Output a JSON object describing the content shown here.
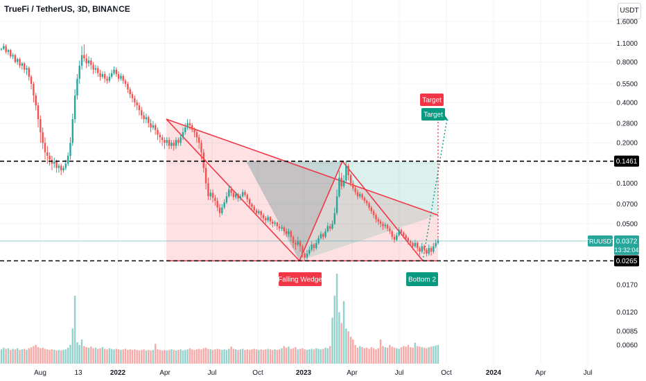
{
  "header": {
    "symbol_title": "TrueFi / TetherUS, 3D, BINANCE",
    "currency": "USDT"
  },
  "chart_data": {
    "type": "candlestick",
    "symbol": "TRUUSDT",
    "price_axis": {
      "scale": "log",
      "ticks": [
        "1.6000",
        "1.1000",
        "0.8000",
        "0.5500",
        "0.4000",
        "0.2800",
        "0.2000",
        "0.1400",
        "0.1000",
        "0.0700",
        "0.0500"
      ]
    },
    "volume_axis": {
      "ticks": [
        "0.0170",
        "0.0120",
        "0.0085",
        "0.0060"
      ]
    },
    "time_axis": {
      "ticks": [
        "Aug",
        "13",
        "2022",
        "Apr",
        "Jul",
        "Oct",
        "2023",
        "Apr",
        "Jul",
        "Oct",
        "2024",
        "Apr",
        "Jul"
      ]
    },
    "levels": [
      {
        "label": "0.1461",
        "value": 0.1461,
        "style": "dashed",
        "color": "#000000"
      },
      {
        "label": "0.0265",
        "value": 0.0265,
        "style": "dashed",
        "color": "#000000"
      }
    ],
    "last_price": {
      "symbol": "TRUUSDT",
      "value": "0.0372",
      "countdown": "13:32:04",
      "color": "#26a69a"
    },
    "annotations": [
      {
        "text": "Target",
        "color": "#f23645"
      },
      {
        "text": "Target",
        "color": "#089981"
      },
      {
        "text": "Falling Wedge",
        "color": "#f23645"
      },
      {
        "text": "Bottom 2",
        "color": "#089981"
      }
    ],
    "candles": [
      [
        1.0,
        1.0,
        1.02,
        0.97
      ],
      [
        1.0,
        1.05,
        1.1,
        0.98
      ],
      [
        1.05,
        0.95,
        1.08,
        0.92
      ],
      [
        0.95,
        0.98,
        1.0,
        0.9
      ],
      [
        0.98,
        0.88,
        1.0,
        0.85
      ],
      [
        0.88,
        0.9,
        0.93,
        0.84
      ],
      [
        0.9,
        0.8,
        0.92,
        0.78
      ],
      [
        0.8,
        0.84,
        0.86,
        0.76
      ],
      [
        0.84,
        0.75,
        0.86,
        0.72
      ],
      [
        0.75,
        0.78,
        0.8,
        0.7
      ],
      [
        0.78,
        0.7,
        0.8,
        0.66
      ],
      [
        0.7,
        0.72,
        0.75,
        0.64
      ],
      [
        0.72,
        0.62,
        0.74,
        0.58
      ],
      [
        0.62,
        0.55,
        0.64,
        0.5
      ],
      [
        0.55,
        0.45,
        0.57,
        0.4
      ],
      [
        0.45,
        0.38,
        0.47,
        0.35
      ],
      [
        0.38,
        0.3,
        0.4,
        0.26
      ],
      [
        0.3,
        0.24,
        0.32,
        0.2
      ],
      [
        0.24,
        0.2,
        0.26,
        0.18
      ],
      [
        0.2,
        0.17,
        0.22,
        0.15
      ],
      [
        0.17,
        0.16,
        0.19,
        0.14
      ],
      [
        0.16,
        0.15,
        0.17,
        0.135
      ],
      [
        0.15,
        0.14,
        0.16,
        0.125
      ],
      [
        0.14,
        0.145,
        0.155,
        0.13
      ],
      [
        0.145,
        0.13,
        0.15,
        0.12
      ],
      [
        0.13,
        0.135,
        0.14,
        0.12
      ],
      [
        0.135,
        0.125,
        0.14,
        0.115
      ],
      [
        0.125,
        0.13,
        0.135,
        0.12
      ],
      [
        0.13,
        0.14,
        0.15,
        0.125
      ],
      [
        0.14,
        0.16,
        0.17,
        0.135
      ],
      [
        0.16,
        0.2,
        0.22,
        0.15
      ],
      [
        0.2,
        0.3,
        0.33,
        0.19
      ],
      [
        0.3,
        0.45,
        0.5,
        0.28
      ],
      [
        0.45,
        0.6,
        0.65,
        0.42
      ],
      [
        0.6,
        0.75,
        0.82,
        0.55
      ],
      [
        0.75,
        0.9,
        1.05,
        0.7
      ],
      [
        0.9,
        0.85,
        1.08,
        0.8
      ],
      [
        0.85,
        0.78,
        0.92,
        0.72
      ],
      [
        0.78,
        0.82,
        0.88,
        0.74
      ],
      [
        0.82,
        0.76,
        0.86,
        0.7
      ],
      [
        0.76,
        0.7,
        0.8,
        0.65
      ],
      [
        0.7,
        0.72,
        0.76,
        0.66
      ],
      [
        0.72,
        0.66,
        0.75,
        0.62
      ],
      [
        0.66,
        0.62,
        0.7,
        0.58
      ],
      [
        0.62,
        0.65,
        0.68,
        0.6
      ],
      [
        0.65,
        0.6,
        0.68,
        0.56
      ],
      [
        0.6,
        0.58,
        0.63,
        0.55
      ],
      [
        0.58,
        0.62,
        0.66,
        0.56
      ],
      [
        0.62,
        0.66,
        0.7,
        0.6
      ],
      [
        0.66,
        0.7,
        0.74,
        0.64
      ],
      [
        0.7,
        0.65,
        0.73,
        0.62
      ],
      [
        0.65,
        0.6,
        0.68,
        0.57
      ],
      [
        0.6,
        0.63,
        0.66,
        0.58
      ],
      [
        0.63,
        0.58,
        0.65,
        0.55
      ],
      [
        0.58,
        0.55,
        0.6,
        0.52
      ],
      [
        0.55,
        0.5,
        0.57,
        0.47
      ],
      [
        0.5,
        0.46,
        0.52,
        0.43
      ],
      [
        0.46,
        0.43,
        0.48,
        0.4
      ],
      [
        0.43,
        0.4,
        0.45,
        0.37
      ],
      [
        0.4,
        0.38,
        0.42,
        0.35
      ],
      [
        0.38,
        0.35,
        0.4,
        0.32
      ],
      [
        0.35,
        0.32,
        0.37,
        0.3
      ],
      [
        0.32,
        0.3,
        0.34,
        0.28
      ],
      [
        0.3,
        0.31,
        0.33,
        0.28
      ],
      [
        0.31,
        0.28,
        0.32,
        0.26
      ],
      [
        0.28,
        0.26,
        0.3,
        0.24
      ],
      [
        0.26,
        0.27,
        0.29,
        0.25
      ],
      [
        0.27,
        0.25,
        0.28,
        0.23
      ],
      [
        0.25,
        0.23,
        0.26,
        0.21
      ],
      [
        0.23,
        0.22,
        0.24,
        0.2
      ],
      [
        0.22,
        0.21,
        0.23,
        0.19
      ],
      [
        0.21,
        0.2,
        0.22,
        0.18
      ],
      [
        0.2,
        0.21,
        0.22,
        0.19
      ],
      [
        0.21,
        0.19,
        0.22,
        0.18
      ],
      [
        0.19,
        0.2,
        0.21,
        0.18
      ],
      [
        0.2,
        0.19,
        0.21,
        0.175
      ],
      [
        0.19,
        0.21,
        0.22,
        0.18
      ],
      [
        0.21,
        0.2,
        0.22,
        0.19
      ],
      [
        0.2,
        0.22,
        0.23,
        0.19
      ],
      [
        0.22,
        0.24,
        0.26,
        0.21
      ],
      [
        0.24,
        0.26,
        0.28,
        0.23
      ],
      [
        0.26,
        0.28,
        0.3,
        0.25
      ],
      [
        0.28,
        0.27,
        0.3,
        0.25
      ],
      [
        0.27,
        0.25,
        0.28,
        0.24
      ],
      [
        0.25,
        0.24,
        0.26,
        0.22
      ],
      [
        0.24,
        0.22,
        0.25,
        0.2
      ],
      [
        0.22,
        0.2,
        0.23,
        0.18
      ],
      [
        0.2,
        0.17,
        0.21,
        0.15
      ],
      [
        0.17,
        0.13,
        0.18,
        0.12
      ],
      [
        0.13,
        0.1,
        0.14,
        0.09
      ],
      [
        0.1,
        0.08,
        0.11,
        0.075
      ],
      [
        0.08,
        0.085,
        0.09,
        0.075
      ],
      [
        0.085,
        0.078,
        0.09,
        0.072
      ],
      [
        0.078,
        0.074,
        0.082,
        0.068
      ],
      [
        0.074,
        0.066,
        0.078,
        0.062
      ],
      [
        0.066,
        0.06,
        0.07,
        0.056
      ],
      [
        0.06,
        0.066,
        0.07,
        0.058
      ],
      [
        0.066,
        0.072,
        0.076,
        0.064
      ],
      [
        0.072,
        0.08,
        0.086,
        0.07
      ],
      [
        0.08,
        0.09,
        0.096,
        0.078
      ],
      [
        0.09,
        0.085,
        0.095,
        0.08
      ],
      [
        0.085,
        0.079,
        0.088,
        0.075
      ],
      [
        0.079,
        0.083,
        0.086,
        0.076
      ],
      [
        0.083,
        0.077,
        0.085,
        0.073
      ],
      [
        0.077,
        0.08,
        0.083,
        0.074
      ],
      [
        0.08,
        0.086,
        0.09,
        0.078
      ],
      [
        0.086,
        0.082,
        0.089,
        0.079
      ],
      [
        0.082,
        0.076,
        0.084,
        0.072
      ],
      [
        0.076,
        0.07,
        0.078,
        0.066
      ],
      [
        0.07,
        0.067,
        0.072,
        0.063
      ],
      [
        0.067,
        0.063,
        0.069,
        0.06
      ],
      [
        0.063,
        0.06,
        0.065,
        0.057
      ],
      [
        0.06,
        0.062,
        0.064,
        0.058
      ],
      [
        0.062,
        0.058,
        0.063,
        0.055
      ],
      [
        0.058,
        0.055,
        0.06,
        0.052
      ],
      [
        0.055,
        0.053,
        0.057,
        0.05
      ],
      [
        0.053,
        0.056,
        0.058,
        0.051
      ],
      [
        0.056,
        0.052,
        0.057,
        0.049
      ],
      [
        0.052,
        0.05,
        0.054,
        0.047
      ],
      [
        0.05,
        0.051,
        0.053,
        0.048
      ],
      [
        0.051,
        0.048,
        0.052,
        0.045
      ],
      [
        0.048,
        0.046,
        0.05,
        0.044
      ],
      [
        0.046,
        0.047,
        0.049,
        0.044
      ],
      [
        0.047,
        0.044,
        0.048,
        0.041
      ],
      [
        0.044,
        0.042,
        0.046,
        0.04
      ],
      [
        0.042,
        0.044,
        0.046,
        0.04
      ],
      [
        0.044,
        0.04,
        0.045,
        0.037
      ],
      [
        0.04,
        0.036,
        0.041,
        0.033
      ],
      [
        0.036,
        0.035,
        0.038,
        0.032
      ],
      [
        0.035,
        0.037,
        0.04,
        0.034
      ],
      [
        0.037,
        0.034,
        0.038,
        0.031
      ],
      [
        0.034,
        0.03,
        0.035,
        0.028
      ],
      [
        0.03,
        0.028,
        0.031,
        0.0265
      ],
      [
        0.028,
        0.03,
        0.032,
        0.027
      ],
      [
        0.03,
        0.032,
        0.034,
        0.029
      ],
      [
        0.032,
        0.035,
        0.037,
        0.031
      ],
      [
        0.035,
        0.033,
        0.036,
        0.031
      ],
      [
        0.033,
        0.036,
        0.038,
        0.032
      ],
      [
        0.036,
        0.039,
        0.041,
        0.035
      ],
      [
        0.039,
        0.042,
        0.044,
        0.038
      ],
      [
        0.042,
        0.04,
        0.043,
        0.038
      ],
      [
        0.04,
        0.044,
        0.046,
        0.039
      ],
      [
        0.044,
        0.048,
        0.051,
        0.043
      ],
      [
        0.048,
        0.046,
        0.05,
        0.044
      ],
      [
        0.046,
        0.05,
        0.053,
        0.045
      ],
      [
        0.05,
        0.06,
        0.066,
        0.049
      ],
      [
        0.06,
        0.08,
        0.09,
        0.058
      ],
      [
        0.08,
        0.11,
        0.125,
        0.078
      ],
      [
        0.11,
        0.095,
        0.12,
        0.09
      ],
      [
        0.095,
        0.105,
        0.115,
        0.092
      ],
      [
        0.105,
        0.135,
        0.146,
        0.1
      ],
      [
        0.135,
        0.115,
        0.14,
        0.105
      ],
      [
        0.115,
        0.1,
        0.118,
        0.095
      ],
      [
        0.1,
        0.092,
        0.105,
        0.088
      ],
      [
        0.092,
        0.086,
        0.095,
        0.082
      ],
      [
        0.086,
        0.08,
        0.09,
        0.076
      ],
      [
        0.08,
        0.083,
        0.086,
        0.077
      ],
      [
        0.083,
        0.078,
        0.085,
        0.075
      ],
      [
        0.078,
        0.074,
        0.08,
        0.071
      ],
      [
        0.074,
        0.071,
        0.076,
        0.068
      ],
      [
        0.071,
        0.066,
        0.073,
        0.063
      ],
      [
        0.066,
        0.062,
        0.068,
        0.059
      ],
      [
        0.062,
        0.058,
        0.064,
        0.055
      ],
      [
        0.058,
        0.054,
        0.06,
        0.051
      ],
      [
        0.054,
        0.052,
        0.056,
        0.049
      ],
      [
        0.052,
        0.05,
        0.054,
        0.047
      ],
      [
        0.05,
        0.048,
        0.052,
        0.045
      ],
      [
        0.048,
        0.049,
        0.051,
        0.046
      ],
      [
        0.049,
        0.046,
        0.05,
        0.044
      ],
      [
        0.046,
        0.044,
        0.048,
        0.042
      ],
      [
        0.044,
        0.04,
        0.045,
        0.038
      ],
      [
        0.04,
        0.038,
        0.042,
        0.036
      ],
      [
        0.038,
        0.041,
        0.043,
        0.037
      ],
      [
        0.041,
        0.045,
        0.047,
        0.04
      ],
      [
        0.045,
        0.043,
        0.046,
        0.041
      ],
      [
        0.043,
        0.041,
        0.044,
        0.039
      ],
      [
        0.041,
        0.039,
        0.042,
        0.037
      ],
      [
        0.039,
        0.037,
        0.04,
        0.035
      ],
      [
        0.037,
        0.036,
        0.038,
        0.034
      ],
      [
        0.036,
        0.034,
        0.037,
        0.032
      ],
      [
        0.034,
        0.036,
        0.038,
        0.033
      ],
      [
        0.036,
        0.033,
        0.037,
        0.031
      ],
      [
        0.033,
        0.031,
        0.034,
        0.029
      ],
      [
        0.031,
        0.034,
        0.036,
        0.03
      ],
      [
        0.034,
        0.032,
        0.035,
        0.03
      ],
      [
        0.032,
        0.03,
        0.033,
        0.0285
      ],
      [
        0.03,
        0.033,
        0.035,
        0.029
      ],
      [
        0.033,
        0.031,
        0.034,
        0.029
      ],
      [
        0.031,
        0.034,
        0.036,
        0.03
      ],
      [
        0.034,
        0.036,
        0.038,
        0.033
      ],
      [
        0.036,
        0.0372,
        0.039,
        0.035
      ]
    ],
    "volume": [
      0.0052,
      0.0055,
      0.0053,
      0.0054,
      0.0051,
      0.0053,
      0.0052,
      0.0054,
      0.0051,
      0.0052,
      0.0053,
      0.0051,
      0.0054,
      0.0056,
      0.0058,
      0.006,
      0.0056,
      0.0054,
      0.0055,
      0.0053,
      0.0052,
      0.0051,
      0.0052,
      0.0051,
      0.005,
      0.0051,
      0.005,
      0.0051,
      0.0052,
      0.0055,
      0.006,
      0.009,
      0.015,
      0.0065,
      0.006,
      0.007,
      0.0058,
      0.0056,
      0.0055,
      0.0057,
      0.0054,
      0.0055,
      0.0053,
      0.0054,
      0.0056,
      0.0053,
      0.0052,
      0.0054,
      0.0053,
      0.0052,
      0.0053,
      0.0052,
      0.0051,
      0.0052,
      0.0053,
      0.0051,
      0.0052,
      0.0051,
      0.0052,
      0.0051,
      0.005,
      0.0051,
      0.0052,
      0.005,
      0.0051,
      0.005,
      0.0051,
      0.0062,
      0.0052,
      0.0051,
      0.005,
      0.0051,
      0.005,
      0.0051,
      0.0052,
      0.0051,
      0.005,
      0.0051,
      0.0052,
      0.005,
      0.0051,
      0.0052,
      0.0054,
      0.0052,
      0.0051,
      0.0052,
      0.0053,
      0.0052,
      0.0054,
      0.0055,
      0.0053,
      0.0052,
      0.0051,
      0.0052,
      0.0053,
      0.0052,
      0.0051,
      0.0052,
      0.0051,
      0.0053,
      0.0057,
      0.0053,
      0.0052,
      0.0051,
      0.0052,
      0.0053,
      0.0051,
      0.0052,
      0.0051,
      0.0052,
      0.0053,
      0.0052,
      0.0051,
      0.0052,
      0.0051,
      0.0052,
      0.0053,
      0.0052,
      0.0051,
      0.0052,
      0.0051,
      0.0052,
      0.0054,
      0.0058,
      0.0055,
      0.0057,
      0.0053,
      0.0054,
      0.0056,
      0.0052,
      0.0053,
      0.0054,
      0.0052,
      0.0051,
      0.0052,
      0.0053,
      0.0052,
      0.0054,
      0.0053,
      0.0052,
      0.0053,
      0.0055,
      0.0054,
      0.0058,
      0.011,
      0.015,
      0.019,
      0.012,
      0.01,
      0.014,
      0.009,
      0.0085,
      0.0075,
      0.007,
      0.006,
      0.0055,
      0.0058,
      0.0056,
      0.0054,
      0.0055,
      0.0053,
      0.0056,
      0.0054,
      0.0052,
      0.0054,
      0.007,
      0.0058,
      0.0056,
      0.0055,
      0.006,
      0.0057,
      0.0055,
      0.0054,
      0.0053,
      0.0056,
      0.0058,
      0.0057,
      0.006,
      0.0056,
      0.0055,
      0.0064,
      0.0058,
      0.0057,
      0.0056,
      0.0055,
      0.0054,
      0.0056,
      0.0057,
      0.0058,
      0.0059,
      0.006
    ]
  }
}
